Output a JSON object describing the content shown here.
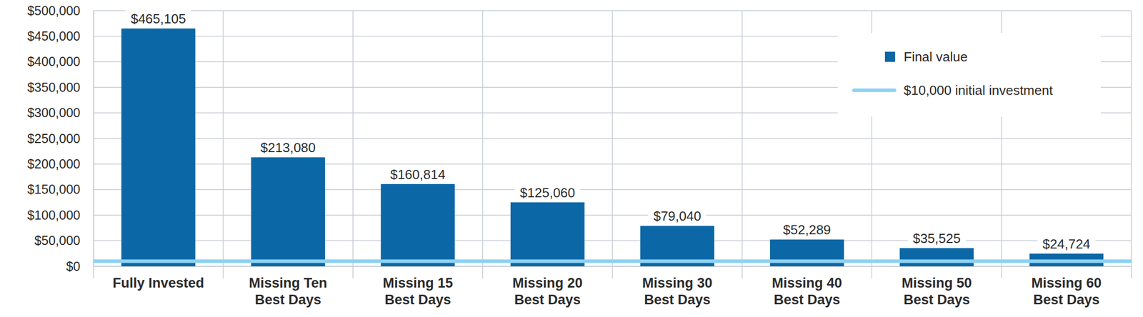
{
  "chart_data": {
    "type": "bar",
    "categories": [
      "Fully Invested",
      "Missing Ten\nBest Days",
      "Missing 15\nBest Days",
      "Missing 20\nBest Days",
      "Missing 30\nBest Days",
      "Missing 40\nBest Days",
      "Missing 50\nBest Days",
      "Missing 60\nBest Days"
    ],
    "series": [
      {
        "name": "Final value",
        "color": "#0b67a6",
        "values": [
          465105,
          213080,
          160814,
          125060,
          79040,
          52289,
          35525,
          24724
        ],
        "value_labels": [
          "$465,105",
          "$213,080",
          "$160,814",
          "$125,060",
          "$79,040",
          "$52,289",
          "$35,525",
          "$24,724"
        ]
      }
    ],
    "reference_line": {
      "name": "$10,000 initial investment",
      "value": 10000,
      "color": "#8ed2f3"
    },
    "ylim": [
      0,
      500000
    ],
    "yticks": [
      {
        "value": 0,
        "label": "$0"
      },
      {
        "value": 50000,
        "label": "$50,000"
      },
      {
        "value": 100000,
        "label": "$100,000"
      },
      {
        "value": 150000,
        "label": "$150,000"
      },
      {
        "value": 200000,
        "label": "$200,000"
      },
      {
        "value": 250000,
        "label": "$250,000"
      },
      {
        "value": 300000,
        "label": "$300,000"
      },
      {
        "value": 350000,
        "label": "$350,000"
      },
      {
        "value": 400000,
        "label": "$400,000"
      },
      {
        "value": 450000,
        "label": "$450,000"
      },
      {
        "value": 500000,
        "label": "$500,000"
      }
    ],
    "grid": true,
    "data_labels": true,
    "legend": "top-right"
  }
}
